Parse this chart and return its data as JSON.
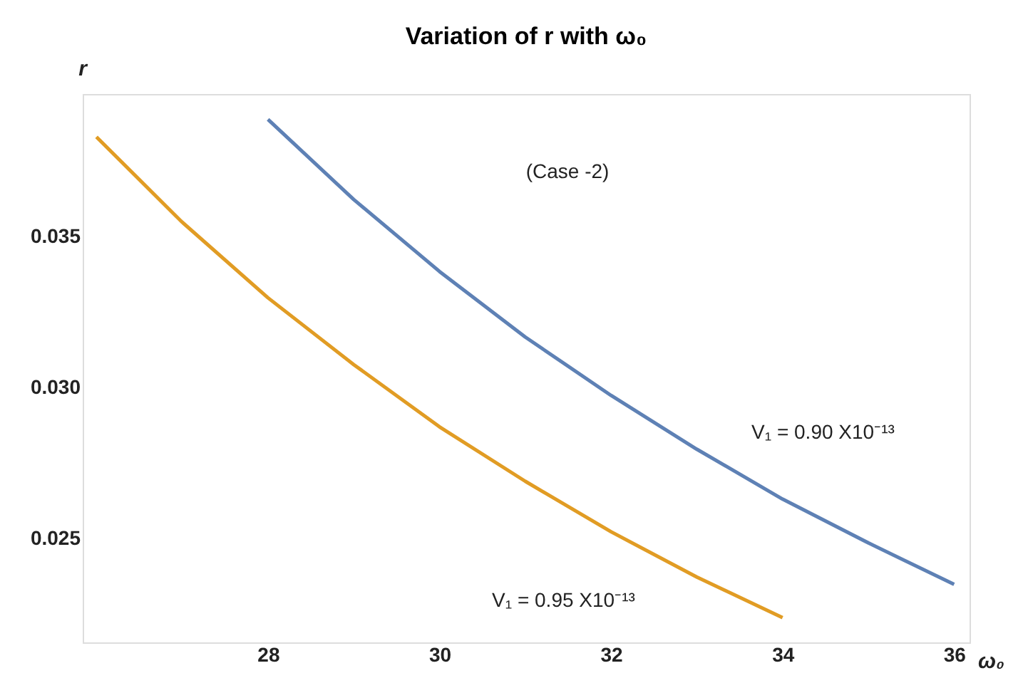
{
  "chart_data": {
    "type": "line",
    "title": "Variation of r with ω₀",
    "xlabel": "ω₀",
    "ylabel": "r",
    "xlim": [
      25.84,
      36.18
    ],
    "xticks": [
      28,
      30,
      32,
      34,
      36
    ],
    "ylim": [
      0.02156,
      0.0397
    ],
    "yticks": [
      0.025,
      {
        "value": 0.03,
        "label": "0.030"
      },
      0.035
    ],
    "grid": false,
    "marker": "none",
    "line_style": "solid",
    "series": [
      {
        "color": "#5e81b5",
        "x": [
          28,
          29,
          30,
          31,
          32,
          33,
          34,
          35,
          36
        ],
        "values": [
          0.03886,
          0.03621,
          0.03383,
          0.03166,
          0.02973,
          0.02795,
          0.0263,
          0.02485,
          0.02348
        ]
      },
      {
        "color": "#e19c24",
        "x": [
          26,
          27,
          28,
          29,
          30,
          31,
          32,
          33,
          34
        ],
        "values": [
          0.03828,
          0.03546,
          0.03296,
          0.03075,
          0.02869,
          0.02689,
          0.02522,
          0.02372,
          0.02238
        ]
      }
    ],
    "annotations": [
      "(Case -2)",
      "V₁ = 0.90 X10⁻¹³",
      "V₁ = 0.95 X10⁻¹³"
    ]
  }
}
